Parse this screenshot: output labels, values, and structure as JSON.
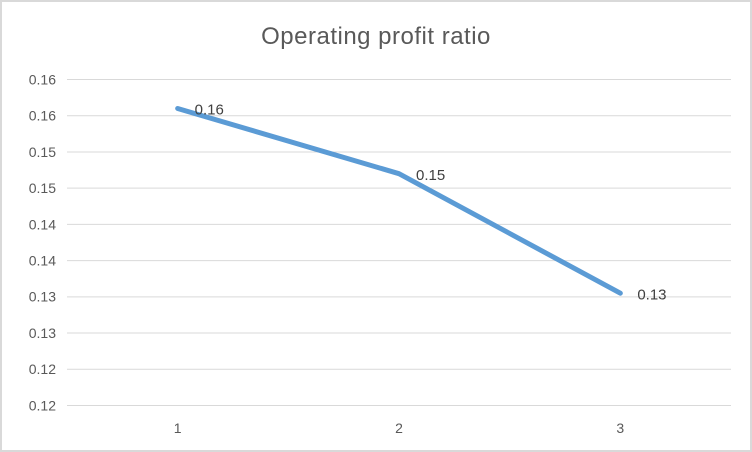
{
  "chart_data": {
    "type": "line",
    "title": "Operating profit ratio",
    "categories": [
      "1",
      "2",
      "3"
    ],
    "series": [
      {
        "name": "Operating profit ratio",
        "values": [
          0.156,
          0.147,
          0.1305
        ],
        "point_labels": [
          "0.16",
          "0.15",
          "0.13"
        ]
      }
    ],
    "xlabel": "",
    "ylabel": "",
    "ylim": [
      0.115,
      0.16
    ],
    "ytick_step": 0.005,
    "ytick_labels_top_to_bottom": [
      "0.16",
      "0.16",
      "0.15",
      "0.15",
      "0.14",
      "0.14",
      "0.13",
      "0.13",
      "0.12",
      "0.12"
    ],
    "grid": true,
    "legend": "none",
    "marker": "none",
    "colors": {
      "series_line": "#5B9BD5",
      "title_text": "#595959",
      "axis_text": "#595959",
      "data_label_text": "#404040",
      "gridline": "#D9D9D9",
      "axis_line": "#D9D9D9",
      "chart_border": "#D9D9D9",
      "background": "#FFFFFF"
    }
  }
}
